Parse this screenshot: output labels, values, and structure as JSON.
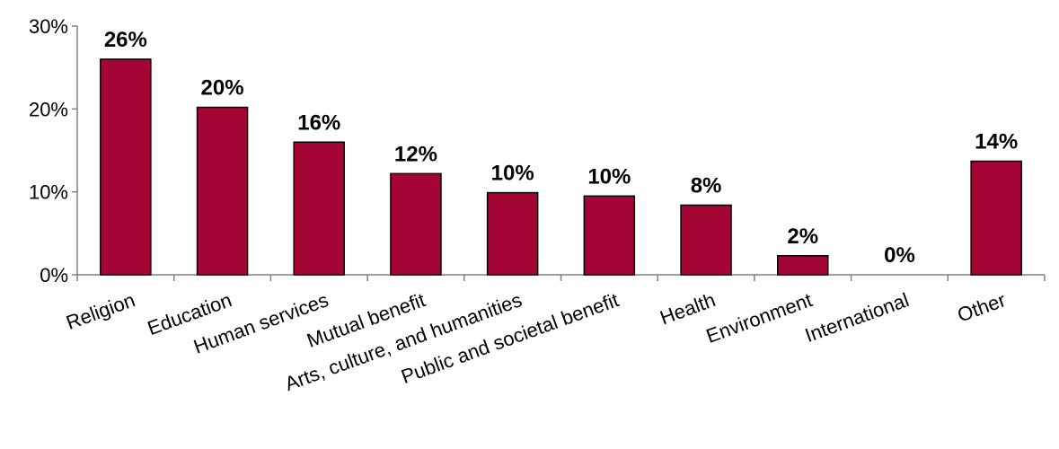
{
  "chart_data": {
    "type": "bar",
    "categories": [
      "Religion",
      "Education",
      "Human services",
      "Mutual benefit",
      "Arts, culture, and humanities",
      "Public and societal benefit",
      "Health",
      "Environment",
      "International",
      "Other"
    ],
    "values": [
      26,
      20.2,
      16,
      12.2,
      9.9,
      9.5,
      8.4,
      2.3,
      0,
      13.7
    ],
    "data_labels": [
      "26%",
      "20%",
      "16%",
      "12%",
      "10%",
      "10%",
      "8%",
      "2%",
      "0%",
      "14%"
    ],
    "ylim": [
      0,
      30
    ],
    "yticks": [
      0,
      10,
      20,
      30
    ],
    "ytick_labels": [
      "0%",
      "10%",
      "20%",
      "30%"
    ],
    "title": "",
    "xlabel": "",
    "ylabel": "",
    "grid": false,
    "legend": "none",
    "bar_color": "#A50534",
    "bar_edge_color": "#000000"
  }
}
